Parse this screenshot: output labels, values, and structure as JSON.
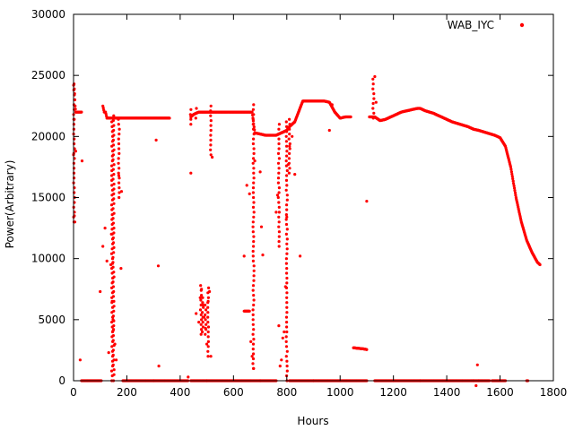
{
  "chart_data": {
    "type": "scatter",
    "xlabel": "Hours",
    "ylabel": "Power(Arbitrary)",
    "xlim": [
      0,
      1800
    ],
    "ylim": [
      0,
      30000
    ],
    "x_ticks": [
      "0",
      "200",
      "400",
      "600",
      "800",
      "1000",
      "1200",
      "1400",
      "1600",
      "1800"
    ],
    "y_ticks": [
      "0",
      "5000",
      "10000",
      "15000",
      "20000",
      "25000",
      "30000"
    ],
    "grid": false,
    "legend_position": "top-right",
    "series": [
      {
        "name": "WAB_IYC",
        "color": "#ff0000",
        "x": [
          0,
          2,
          4,
          6,
          8,
          10,
          15,
          20,
          25,
          30,
          110,
          115,
          120,
          125,
          130,
          140,
          145,
          150,
          160,
          170,
          180,
          200,
          220,
          250,
          280,
          300,
          320,
          340,
          360,
          440,
          450,
          460,
          470,
          480,
          490,
          500,
          510,
          520,
          540,
          560,
          580,
          600,
          620,
          640,
          660,
          670,
          680,
          700,
          720,
          740,
          760,
          770,
          780,
          790,
          800,
          810,
          820,
          830,
          860,
          880,
          900,
          920,
          940,
          960,
          980,
          1000,
          1020,
          1040,
          1110,
          1130,
          1150,
          1170,
          1190,
          1210,
          1230,
          1250,
          1270,
          1290,
          1300,
          1320,
          1350,
          1380,
          1400,
          1420,
          1450,
          1480,
          1500,
          1520,
          1550,
          1580,
          1600,
          1620,
          1640,
          1660,
          1680,
          1700,
          1720,
          1740,
          1750,
          150,
          300,
          500,
          700,
          900,
          1000,
          1200,
          1300,
          1400,
          1500,
          1050,
          1070,
          1090,
          1100,
          640,
          660
        ],
        "y": [
          18500,
          24300,
          23500,
          22500,
          22000,
          22000,
          22000,
          22000,
          22000,
          22000,
          22500,
          22000,
          22000,
          21500,
          21500,
          21500,
          21500,
          21500,
          21500,
          21500,
          21500,
          21500,
          21500,
          21500,
          21500,
          21500,
          21500,
          21500,
          21500,
          21600,
          21800,
          21900,
          22000,
          22000,
          22000,
          22000,
          22000,
          22000,
          22000,
          22000,
          22000,
          22000,
          22000,
          22000,
          22000,
          22000,
          20300,
          20200,
          20100,
          20100,
          20100,
          20200,
          20300,
          20400,
          20500,
          20800,
          21000,
          21200,
          22900,
          22900,
          22900,
          22900,
          22900,
          22800,
          22000,
          21500,
          21600,
          21600,
          21600,
          21600,
          21300,
          21400,
          21600,
          21800,
          22000,
          22100,
          22200,
          22300,
          22300,
          22100,
          21900,
          21600,
          21400,
          21200,
          21000,
          20800,
          20600,
          20500,
          20300,
          20100,
          19900,
          19200,
          17500,
          15000,
          13000,
          11500,
          10500,
          9700,
          9500,
          0,
          0,
          0,
          0,
          0,
          0,
          0,
          0,
          0,
          0,
          2700,
          2650,
          2600,
          2550,
          5700,
          5700
        ]
      }
    ],
    "scattered_points": {
      "x": [
        3,
        5,
        8,
        25,
        32,
        100,
        110,
        118,
        125,
        132,
        140,
        142,
        145,
        148,
        150,
        155,
        160,
        170,
        178,
        180,
        310,
        318,
        320,
        430,
        440,
        460,
        470,
        475,
        480,
        485,
        490,
        495,
        500,
        505,
        510,
        515,
        520,
        640,
        650,
        660,
        665,
        670,
        675,
        680,
        700,
        705,
        710,
        760,
        765,
        770,
        775,
        780,
        785,
        790,
        795,
        800,
        805,
        810,
        820,
        830,
        850,
        960,
        970,
        1100,
        1130,
        1135,
        1510,
        1515,
        1520
      ],
      "y": [
        13500,
        13000,
        18800,
        1700,
        18000,
        7300,
        11000,
        12500,
        9800,
        2300,
        9500,
        12000,
        6500,
        5000,
        4200,
        3000,
        1700,
        16800,
        9200,
        15500,
        19700,
        9400,
        1200,
        300,
        17000,
        5500,
        4800,
        6800,
        7500,
        6200,
        5200,
        4300,
        3000,
        6500,
        7300,
        2000,
        18300,
        10200,
        16000,
        15300,
        3200,
        2000,
        1000,
        18000,
        17100,
        12600,
        10300,
        13800,
        15200,
        4500,
        1200,
        1700,
        3500,
        4000,
        7700,
        13400,
        17700,
        19200,
        20000,
        16900,
        10200,
        20500,
        22600,
        14700,
        24900,
        22800,
        -400,
        1300,
        0
      ]
    }
  }
}
